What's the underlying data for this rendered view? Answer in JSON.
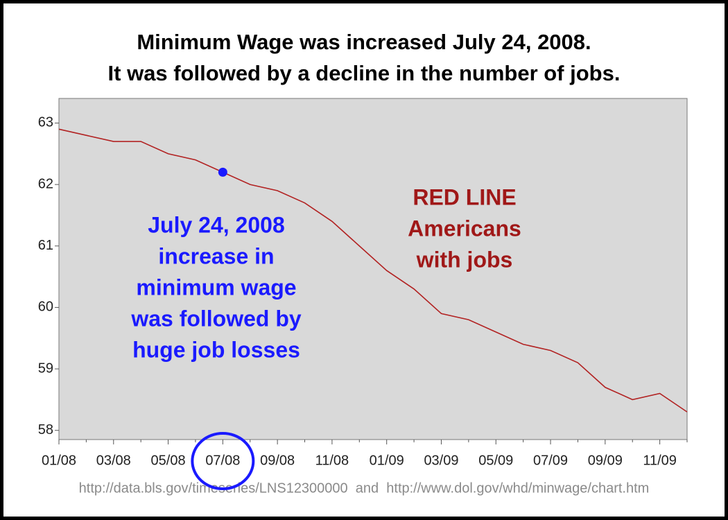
{
  "chart_data": {
    "type": "line",
    "title_lines": [
      "Minimum Wage was increased July 24, 2008.",
      "It was followed by a decline in the number of jobs."
    ],
    "categories": [
      "01/08",
      null,
      "03/08",
      null,
      "05/08",
      null,
      "07/08",
      null,
      "09/08",
      null,
      "11/08",
      null,
      "01/09",
      null,
      "03/09",
      null,
      "05/09",
      null,
      "07/09",
      null,
      "09/09",
      null,
      "11/09",
      null
    ],
    "values": [
      62.9,
      62.8,
      62.7,
      62.7,
      62.5,
      62.4,
      62.2,
      62.0,
      61.9,
      61.7,
      61.4,
      61.0,
      60.6,
      60.3,
      59.9,
      59.8,
      59.6,
      59.4,
      59.3,
      59.1,
      58.7,
      58.5,
      58.6,
      58.3
    ],
    "color": "#b22222",
    "ylim": [
      57.85,
      63.4
    ],
    "yticks": [
      58,
      59,
      60,
      61,
      62,
      63
    ],
    "grid": false,
    "highlight": {
      "category": "07/08",
      "value": 62.2,
      "color": "#1a1aff"
    },
    "annotations": [
      {
        "color": "#1a1aff",
        "lines": [
          "July 24, 2008",
          "increase in",
          "minimum wage",
          "was followed by",
          "huge job losses"
        ]
      },
      {
        "color": "#a01818",
        "lines": [
          "RED LINE",
          "Americans",
          "with jobs"
        ]
      }
    ],
    "source": "http://data.bls.gov/timeseries/LNS12300000  and  http://www.dol.gov/whd/minwage/chart.htm"
  }
}
